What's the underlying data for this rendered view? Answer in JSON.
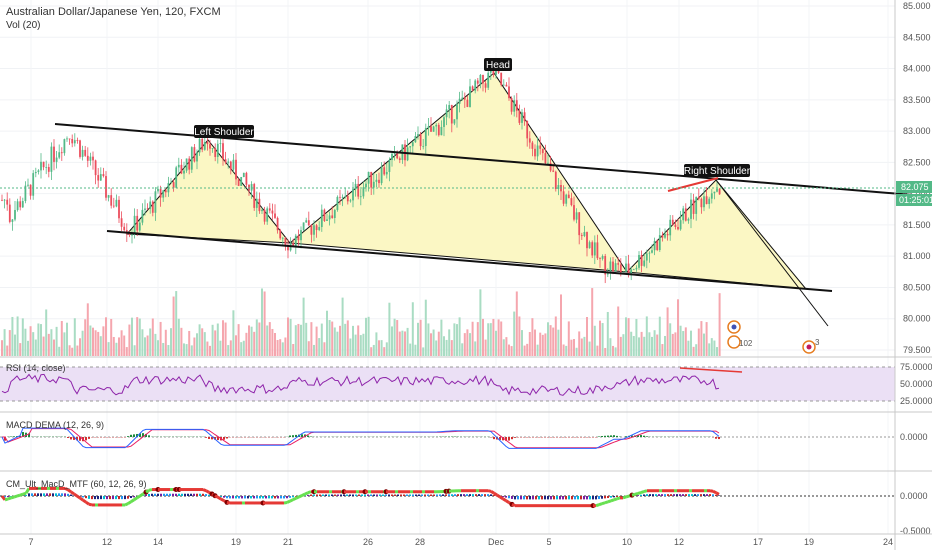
{
  "header": {
    "symbol": "Australian Dollar/Japanese Yen, 120, FXCM",
    "vol": "Vol (20)"
  },
  "price_scale": {
    "ticks": [
      "85.000",
      "84.500",
      "84.000",
      "83.500",
      "83.000",
      "82.500",
      "82.000",
      "81.500",
      "81.000",
      "80.500",
      "80.000",
      "79.500"
    ],
    "last_price": "82.075",
    "countdown": "01:25:01"
  },
  "x_axis": {
    "ticks": [
      "7",
      "12",
      "14",
      "19",
      "21",
      "26",
      "28",
      "Dec",
      "5",
      "10",
      "12",
      "17",
      "19",
      "24"
    ]
  },
  "panes": {
    "rsi": {
      "title": "RSI (14, close)",
      "ticks": [
        "75.0000",
        "50.0000",
        "25.0000"
      ]
    },
    "macd": {
      "title": "MACD DEMA (12, 26, 9)",
      "ticks": [
        "0.0000"
      ]
    },
    "cm": {
      "title": "CM_Ult_MacD_MTF (60, 12, 26, 9)",
      "ticks": [
        "0.0000",
        "-0.5000"
      ]
    }
  },
  "annotations": {
    "head": "Head",
    "left_shoulder": "Left Shoulder",
    "right_shoulder": "Right Shoulder",
    "event_count_1": "102",
    "event_count_2": "3"
  },
  "colors": {
    "up": "#53b987",
    "down": "#eb4d5c",
    "pattern_fill": "#fbf7c4",
    "rsi_line": "#8e24aa",
    "rsi_band": "#ebe0f5",
    "macd_line": "#2962ff",
    "signal_line": "#e91e63",
    "red_trend": "#e53935"
  },
  "chart_data": {
    "type": "candlestick",
    "title": "Australian Dollar/Japanese Yen, 120, FXCM",
    "y_range": [
      79.35,
      85.05
    ],
    "price_path": [
      {
        "x": "7",
        "y": 81.6
      },
      {
        "x": "9",
        "y": 83.0
      },
      {
        "x": "12",
        "y": 81.4
      },
      {
        "x": "18",
        "y": 82.9
      },
      {
        "x": "21",
        "y": 81.2
      },
      {
        "x": "27",
        "y": 83.1
      },
      {
        "x": "Dec",
        "y": 83.95
      },
      {
        "x": "7",
        "y": 80.9
      },
      {
        "x": "10",
        "y": 80.75
      },
      {
        "x": "14",
        "y": 82.15
      },
      {
        "x": "15",
        "y": 81.9
      }
    ],
    "current_price": 82.075,
    "pattern": "Head and Shoulders",
    "rsi_levels": [
      75,
      50,
      25
    ],
    "cm_ticks": [
      0.0,
      -0.5
    ]
  }
}
